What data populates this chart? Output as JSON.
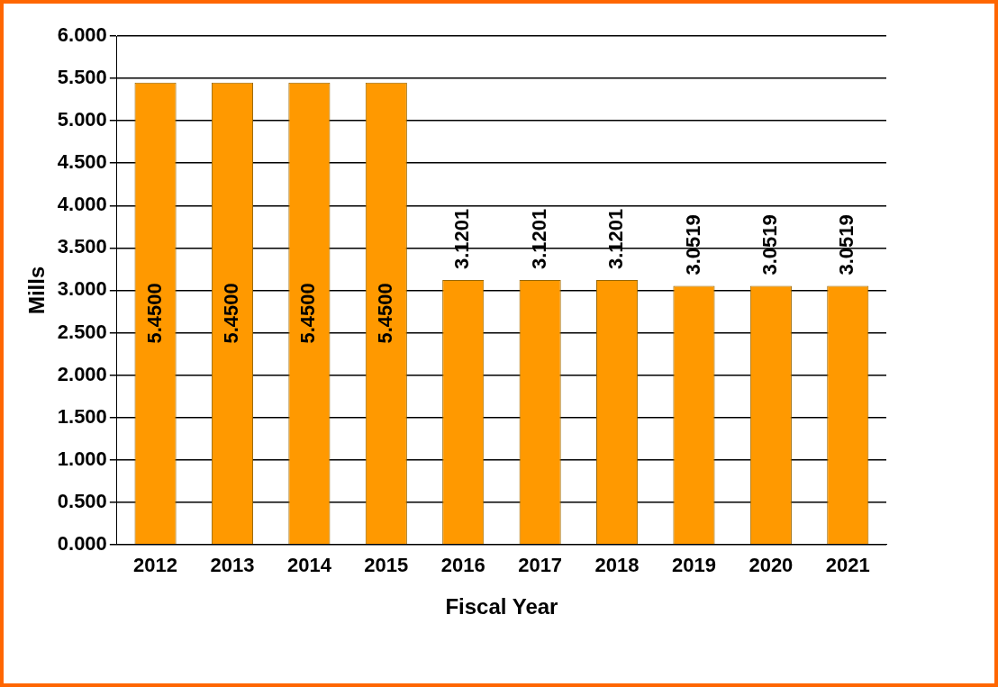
{
  "chart_data": {
    "type": "bar",
    "xlabel": "Fiscal Year",
    "ylabel": "Mills",
    "categories": [
      "2012",
      "2013",
      "2014",
      "2015",
      "2016",
      "2017",
      "2018",
      "2019",
      "2020",
      "2021"
    ],
    "values": [
      5.45,
      5.45,
      5.45,
      5.45,
      3.1201,
      3.1201,
      3.1201,
      3.0519,
      3.0519,
      3.0519
    ],
    "value_labels": [
      "5.4500",
      "5.4500",
      "5.4500",
      "5.4500",
      "3.1201",
      "3.1201",
      "3.1201",
      "3.0519",
      "3.0519",
      "3.0519"
    ],
    "color": "#ff9900",
    "ylim": [
      0,
      6
    ],
    "yticks": [
      {
        "value": 0,
        "label": "0.000"
      },
      {
        "value": 0.5,
        "label": "0.500"
      },
      {
        "value": 1,
        "label": "1.000"
      },
      {
        "value": 1.5,
        "label": "1.500"
      },
      {
        "value": 2,
        "label": "2.000"
      },
      {
        "value": 2.5,
        "label": "2.500"
      },
      {
        "value": 3,
        "label": "3.000"
      },
      {
        "value": 3.5,
        "label": "3.500"
      },
      {
        "value": 4,
        "label": "4.000"
      },
      {
        "value": 4.5,
        "label": "4.500"
      },
      {
        "value": 5,
        "label": "5.000"
      },
      {
        "value": 5.5,
        "label": "5.500"
      },
      {
        "value": 6,
        "label": "6.000"
      }
    ],
    "grid": "y",
    "legend": false
  }
}
